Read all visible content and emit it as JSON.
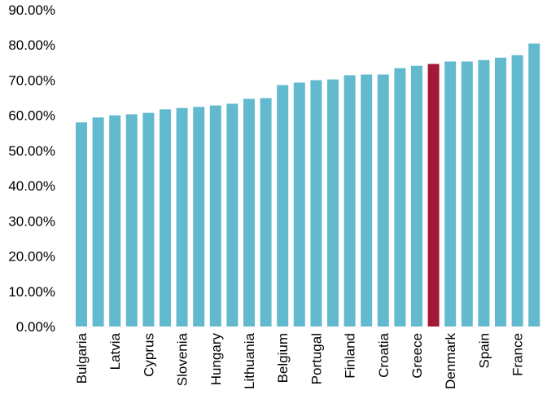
{
  "chart_data": {
    "type": "bar",
    "title": "",
    "xlabel": "",
    "ylabel": "",
    "ylim": [
      0,
      90
    ],
    "yticks": [
      "0.00%",
      "10.00%",
      "20.00%",
      "30.00%",
      "40.00%",
      "50.00%",
      "60.00%",
      "70.00%",
      "80.00%",
      "90.00%"
    ],
    "grid": false,
    "legend": "none",
    "categories": [
      "Bulgaria",
      "",
      "Latvia",
      "",
      "Cyprus",
      "",
      "Slovenia",
      "",
      "Hungary",
      "",
      "Lithuania",
      "",
      "Belgium",
      "",
      "Portugal",
      "",
      "Finland",
      "",
      "Croatia",
      "",
      "Greece",
      "",
      "Denmark",
      "",
      "Spain",
      "",
      "France",
      ""
    ],
    "values": [
      58.0,
      59.4,
      60.0,
      60.3,
      60.7,
      61.7,
      62.1,
      62.4,
      62.8,
      63.3,
      64.7,
      64.9,
      68.6,
      69.3,
      70.0,
      70.2,
      71.4,
      71.6,
      71.6,
      73.4,
      74.1,
      74.6,
      75.3,
      75.3,
      75.7,
      76.4,
      77.1,
      80.4
    ],
    "highlight_index": 21,
    "colors": {
      "bar": "#62bace",
      "highlight": "#a31837"
    }
  }
}
